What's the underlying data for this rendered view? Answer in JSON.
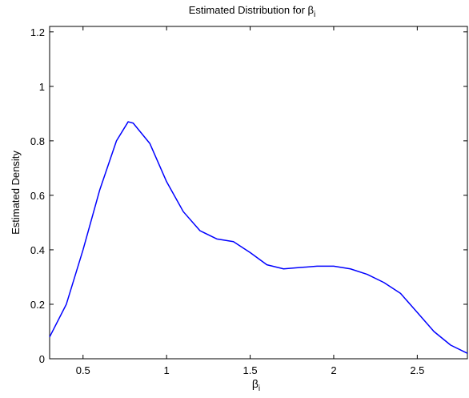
{
  "chart_data": {
    "type": "line",
    "title": {
      "main": "Estimated Distribution for β",
      "sub": "i"
    },
    "xlabel": {
      "main": "β",
      "sub": "i"
    },
    "ylabel": "Estimated Density",
    "x": [
      0.3,
      0.4,
      0.5,
      0.6,
      0.7,
      0.77,
      0.8,
      0.9,
      1.0,
      1.1,
      1.2,
      1.3,
      1.4,
      1.5,
      1.6,
      1.7,
      1.8,
      1.9,
      2.0,
      2.1,
      2.2,
      2.3,
      2.4,
      2.5,
      2.6,
      2.7,
      2.8
    ],
    "series": [
      {
        "color": "#0000ff",
        "values": [
          0.08,
          0.2,
          0.4,
          0.62,
          0.8,
          0.87,
          0.865,
          0.79,
          0.65,
          0.54,
          0.47,
          0.44,
          0.43,
          0.39,
          0.345,
          0.33,
          0.335,
          0.34,
          0.34,
          0.33,
          0.31,
          0.28,
          0.24,
          0.17,
          0.1,
          0.05,
          0.02
        ]
      }
    ],
    "xlim": [
      0.3,
      2.8
    ],
    "xticks": [
      0.5,
      1,
      1.5,
      2,
      2.5
    ],
    "ylim": [
      0,
      1.22
    ],
    "yticks": [
      0,
      0.2,
      0.4,
      0.6,
      0.8,
      1,
      1.2
    ],
    "grid": false
  }
}
